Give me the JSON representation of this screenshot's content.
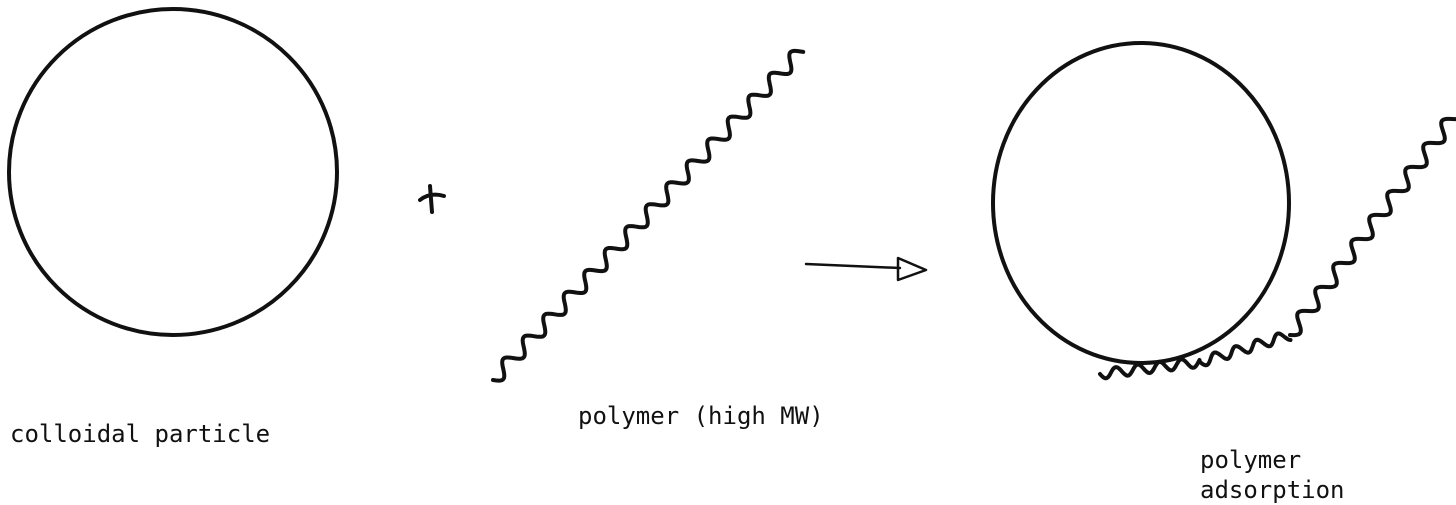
{
  "labels": {
    "particle": "colloidal particle",
    "polymer": "polymer (high MW)",
    "adsorption": [
      "polymer",
      "adsorption"
    ]
  }
}
